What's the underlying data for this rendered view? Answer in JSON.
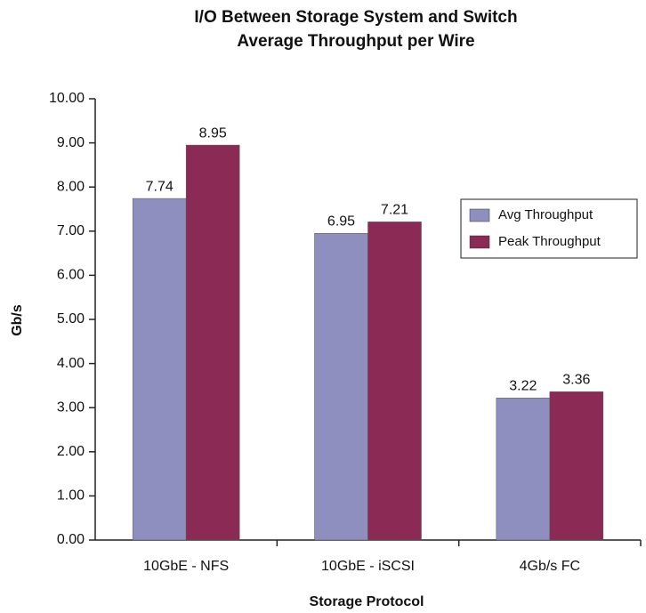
{
  "chart_data": {
    "type": "bar",
    "title": "I/O Between Storage System and Switch",
    "subtitle": "Average Throughput per Wire",
    "x_label": "Storage Protocol",
    "y_label": "Gb/s",
    "categories": [
      "10GbE - NFS",
      "10GbE - iSCSI",
      "4Gb/s FC"
    ],
    "series": [
      {
        "name": "Avg Throughput",
        "color": "#8e8fbf",
        "values": [
          7.74,
          6.95,
          3.22
        ]
      },
      {
        "name": "Peak Throughput",
        "color": "#8b2a55",
        "values": [
          8.95,
          7.21,
          3.36
        ]
      }
    ],
    "ylim": [
      0,
      10
    ],
    "yticks": [
      {
        "value": 0,
        "label": "0.00"
      },
      {
        "value": 1,
        "label": "1.00"
      },
      {
        "value": 2,
        "label": "2.00"
      },
      {
        "value": 3,
        "label": "3.00"
      },
      {
        "value": 4,
        "label": "4.00"
      },
      {
        "value": 5,
        "label": "5.00"
      },
      {
        "value": 6,
        "label": "6.00"
      },
      {
        "value": 7,
        "label": "7.00"
      },
      {
        "value": 8,
        "label": "8.00"
      },
      {
        "value": 9,
        "label": "9.00"
      },
      {
        "value": 10,
        "label": "10.00"
      }
    ],
    "legend": "right"
  }
}
